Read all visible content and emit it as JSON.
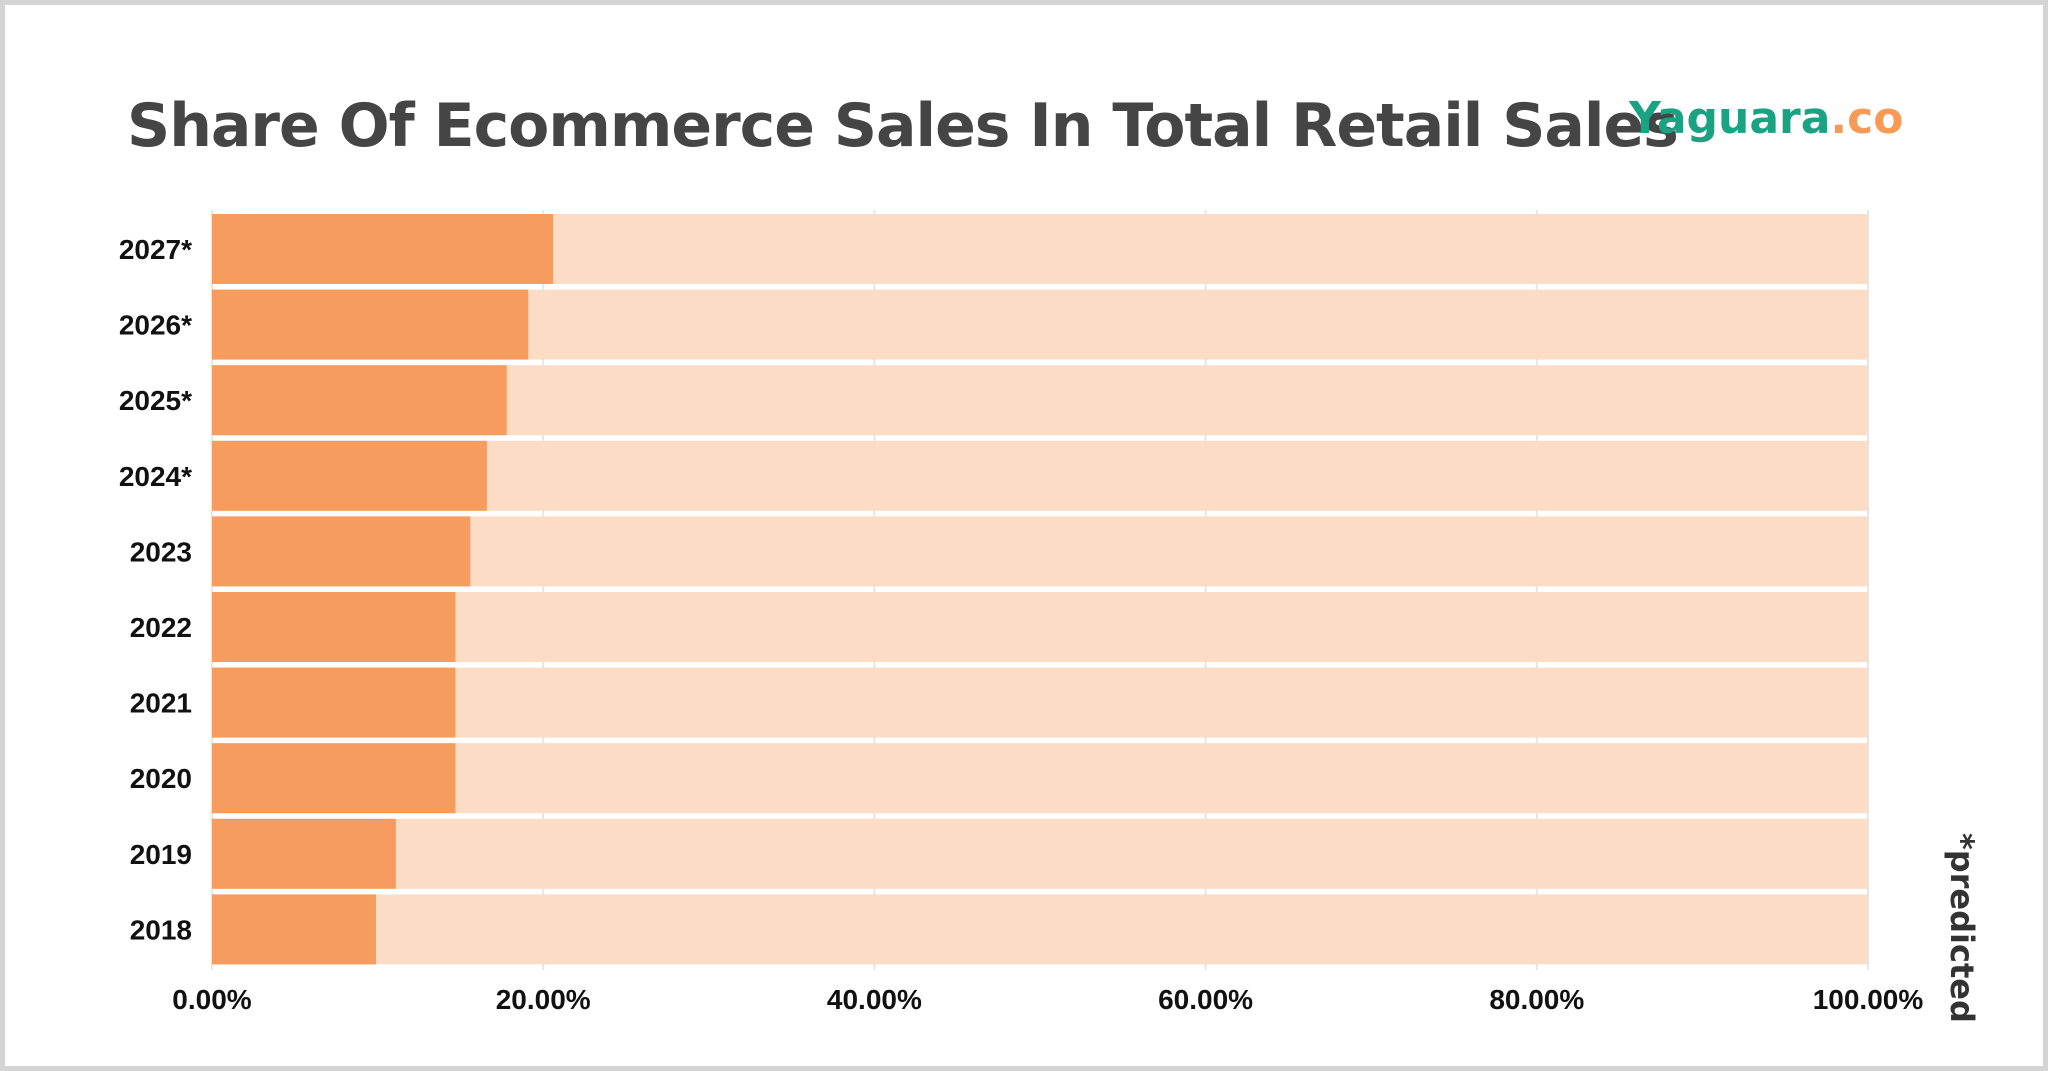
{
  "header": {
    "title": "Share Of Ecommerce Sales In Total Retail Sales"
  },
  "logo": {
    "name": "Yaguara",
    "tld": ".co",
    "name_color": "#19a383",
    "tld_color": "#f69a56"
  },
  "footnote": "*predicted",
  "colors": {
    "bar": "#f69c5e",
    "track": "#fddcc6",
    "grid": "#e6e6e6"
  },
  "chart_data": {
    "type": "bar",
    "orientation": "horizontal",
    "title": "Share Of Ecommerce Sales In Total Retail Sales",
    "categories": [
      "2027*",
      "2026*",
      "2025*",
      "2024*",
      "2023",
      "2022",
      "2021",
      "2020",
      "2019",
      "2018"
    ],
    "values": [
      20.6,
      19.1,
      17.8,
      16.6,
      15.6,
      14.7,
      14.7,
      14.7,
      11.1,
      9.9
    ],
    "xlim": [
      0,
      100
    ],
    "xticks": [
      0,
      20,
      40,
      60,
      80,
      100
    ],
    "xtick_labels": [
      "0.00%",
      "20.00%",
      "40.00%",
      "60.00%",
      "80.00%",
      "100.00%"
    ],
    "xlabel": "",
    "ylabel": "",
    "background_track": true,
    "grid": true
  }
}
